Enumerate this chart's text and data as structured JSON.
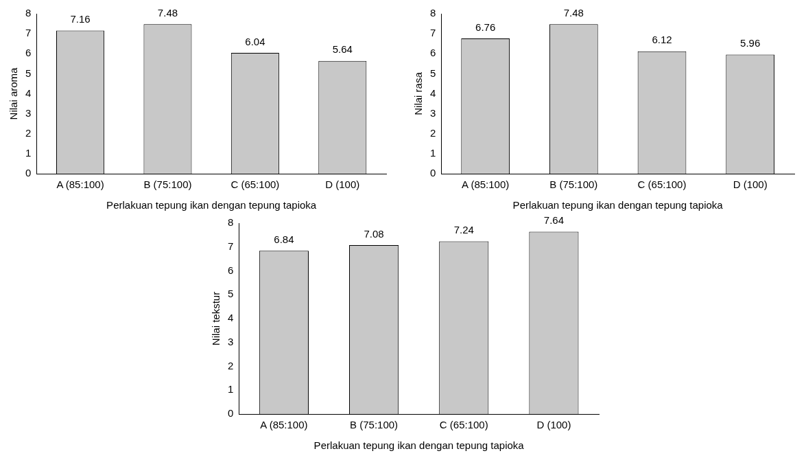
{
  "chart_data": [
    {
      "type": "bar",
      "xlabel": "Perlakuan tepung ikan dengan tepung tapioka",
      "ylabel": "Nilai aroma",
      "categories": [
        "A (85:100)",
        "B (75:100)",
        "C (65:100)",
        "D (100)"
      ],
      "values": [
        7.16,
        7.48,
        6.04,
        5.64
      ],
      "color": "#c8c8c8",
      "ylim": [
        0,
        8
      ],
      "yticks": [
        0,
        1,
        2,
        3,
        4,
        5,
        6,
        7,
        8
      ],
      "grid": false,
      "data_labels": true
    },
    {
      "type": "bar",
      "xlabel": "Perlakuan tepung ikan dengan tepung tapioka",
      "ylabel": "Nilai rasa",
      "categories": [
        "A (85:100)",
        "B (75:100)",
        "C (65:100)",
        "D (100)"
      ],
      "values": [
        6.76,
        7.48,
        6.12,
        5.96
      ],
      "color": "#c8c8c8",
      "ylim": [
        0,
        8
      ],
      "yticks": [
        0,
        1,
        2,
        3,
        4,
        5,
        6,
        7,
        8
      ],
      "grid": false,
      "data_labels": true
    },
    {
      "type": "bar",
      "xlabel": "Perlakuan tepung ikan dengan tepung tapioka",
      "ylabel": "Nilai tekstur",
      "categories": [
        "A (85:100)",
        "B (75:100)",
        "C (65:100)",
        "D (100)"
      ],
      "values": [
        6.84,
        7.08,
        7.24,
        7.64
      ],
      "color": "#c8c8c8",
      "ylim": [
        0,
        8
      ],
      "yticks": [
        0,
        1,
        2,
        3,
        4,
        5,
        6,
        7,
        8
      ],
      "grid": false,
      "data_labels": true
    }
  ]
}
